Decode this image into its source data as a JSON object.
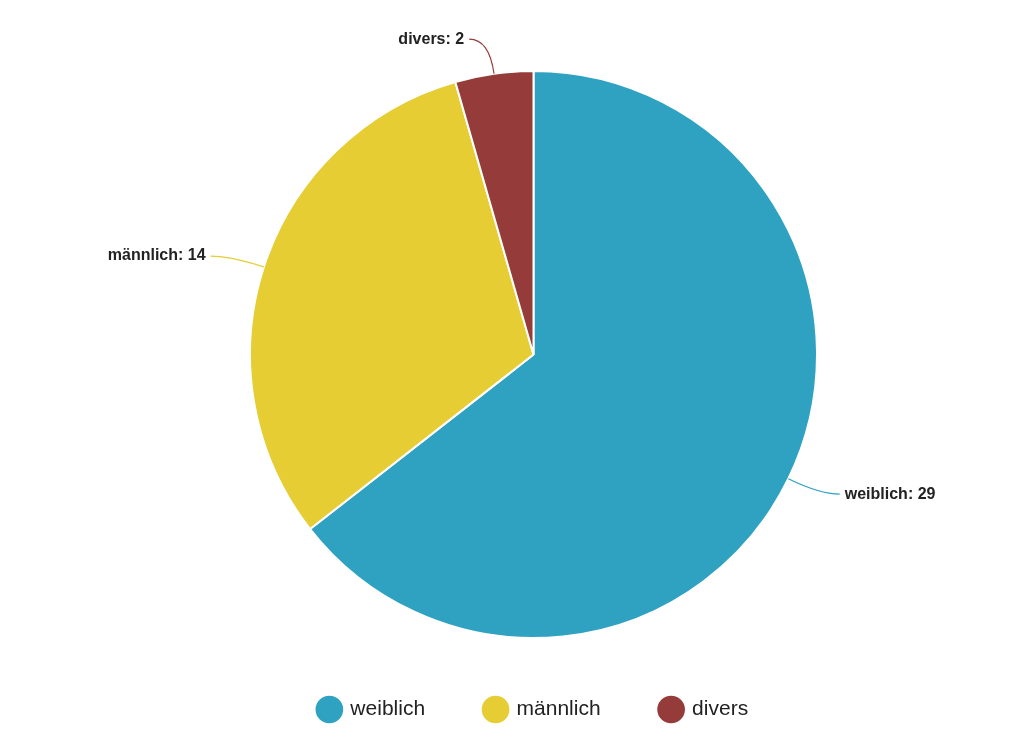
{
  "chart_data": {
    "type": "pie",
    "categories": [
      "weiblich",
      "männlich",
      "divers"
    ],
    "values": [
      29,
      14,
      2
    ],
    "colors": [
      "#2fa2c2",
      "#e5cd33",
      "#953c3a"
    ],
    "value_labels": [
      "weiblich: 29",
      "männlich: 14",
      "divers: 2"
    ],
    "legend": "bottom"
  }
}
